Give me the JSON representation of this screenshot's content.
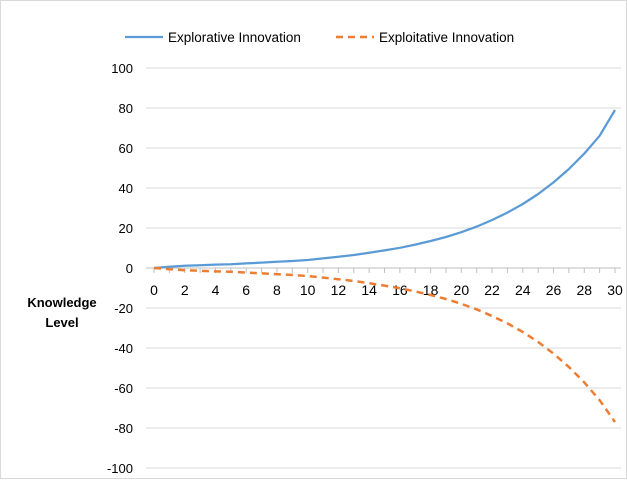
{
  "chart_data": {
    "type": "line",
    "title": "",
    "xlabel": "",
    "ylabel_lines": [
      "Knowledge",
      "Level"
    ],
    "x": [
      0,
      1,
      2,
      3,
      4,
      5,
      6,
      7,
      8,
      9,
      10,
      11,
      12,
      13,
      14,
      15,
      16,
      17,
      18,
      19,
      20,
      21,
      22,
      23,
      24,
      25,
      26,
      27,
      28,
      29,
      30
    ],
    "x_ticks": [
      0,
      2,
      4,
      6,
      8,
      10,
      12,
      14,
      16,
      18,
      20,
      22,
      24,
      26,
      28,
      30
    ],
    "xlim": [
      0,
      30
    ],
    "ylim": [
      -100,
      100
    ],
    "y_ticks": [
      100,
      80,
      60,
      40,
      20,
      0,
      -20,
      -40,
      -60,
      -80,
      -100
    ],
    "grid": "horizontal",
    "legend_position": "top",
    "series": [
      {
        "name": "Explorative Innovation",
        "color": "#5b9bd5",
        "style": "solid",
        "values": [
          0,
          0.6,
          1.1,
          1.4,
          1.7,
          1.9,
          2.3,
          2.7,
          3.1,
          3.5,
          4,
          4.8,
          5.6,
          6.5,
          7.6,
          8.8,
          10.1,
          11.7,
          13.5,
          15.5,
          17.9,
          20.7,
          24,
          27.7,
          32,
          37,
          42.8,
          49.5,
          57.2,
          66.1,
          79
        ]
      },
      {
        "name": "Exploitative Innovation",
        "color": "#ed7d31",
        "style": "dashed",
        "values": [
          0,
          -0.6,
          -1.1,
          -1.4,
          -1.7,
          -1.9,
          -2.3,
          -2.7,
          -3.1,
          -3.5,
          -4,
          -4.8,
          -5.6,
          -6.5,
          -7.6,
          -8.8,
          -10.1,
          -11.7,
          -13.5,
          -15.5,
          -17.9,
          -20.7,
          -24,
          -27.7,
          -32,
          -37,
          -42.8,
          -49.5,
          -57.2,
          -66.1,
          -77
        ]
      }
    ]
  }
}
